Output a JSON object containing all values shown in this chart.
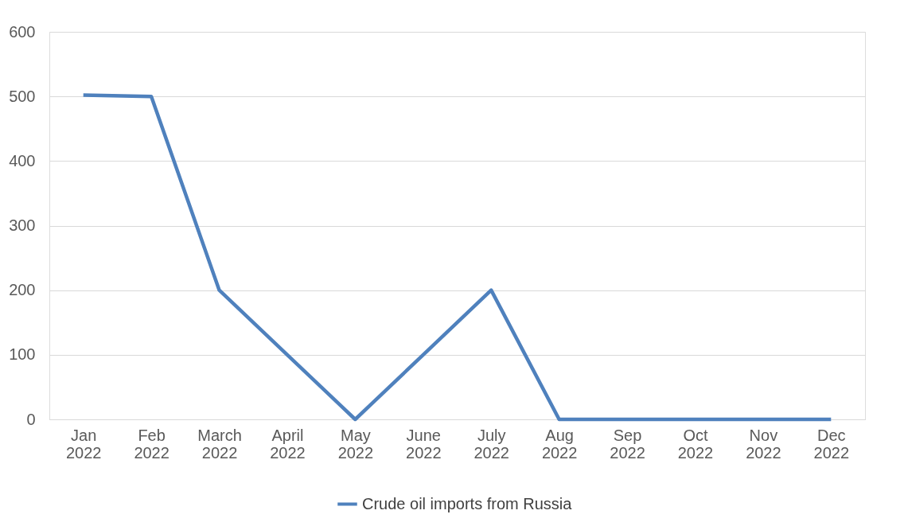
{
  "chart_data": {
    "type": "line",
    "categories": [
      "Jan 2022",
      "Feb 2022",
      "March 2022",
      "April 2022",
      "May 2022",
      "June 2022",
      "July 2022",
      "Aug 2022",
      "Sep 2022",
      "Oct 2022",
      "Nov 2022",
      "Dec 2022"
    ],
    "series": [
      {
        "name": "Crude oil imports from Russia",
        "color": "#4f81bd",
        "values": [
          502,
          500,
          200,
          100,
          0,
          100,
          200,
          0,
          0,
          0,
          0,
          0
        ]
      }
    ],
    "ylim": [
      0,
      600
    ],
    "yticks": [
      0,
      100,
      200,
      300,
      400,
      500,
      600
    ],
    "grid": "y",
    "legend": "bottom",
    "marker": "none",
    "line_style": "solid"
  }
}
